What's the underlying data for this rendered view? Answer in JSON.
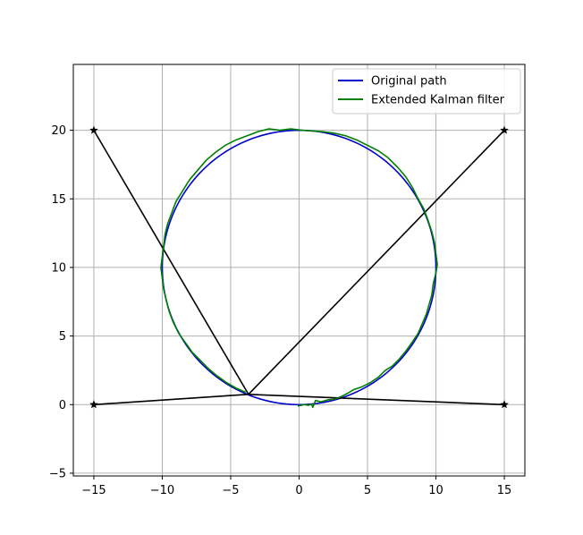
{
  "chart_data": {
    "type": "line",
    "xlim": [
      -16.5,
      16.5
    ],
    "ylim": [
      -5.2,
      24.8
    ],
    "xticks": [
      -15,
      -10,
      -5,
      0,
      5,
      10,
      15
    ],
    "yticks": [
      -5,
      0,
      5,
      10,
      15,
      20
    ],
    "grid": true,
    "legend_position": "top-right",
    "series": [
      {
        "name": "Original path",
        "kind": "circle",
        "center": [
          0,
          10
        ],
        "radius": 10,
        "color": "#0000cc"
      },
      {
        "name": "Extended Kalman filter",
        "color": "#008000",
        "points": [
          [
            -0.1,
            -0.1
          ],
          [
            0.4,
            0.0
          ],
          [
            0.7,
            -0.05
          ],
          [
            0.9,
            0.05
          ],
          [
            1.0,
            -0.2
          ],
          [
            1.2,
            0.3
          ],
          [
            1.6,
            0.2
          ],
          [
            2.1,
            0.35
          ],
          [
            2.6,
            0.4
          ],
          [
            3.1,
            0.6
          ],
          [
            3.5,
            0.8
          ],
          [
            4.0,
            1.1
          ],
          [
            4.6,
            1.3
          ],
          [
            5.2,
            1.6
          ],
          [
            5.8,
            2.0
          ],
          [
            6.3,
            2.5
          ],
          [
            6.8,
            2.8
          ],
          [
            7.3,
            3.3
          ],
          [
            7.8,
            3.9
          ],
          [
            8.3,
            4.6
          ],
          [
            8.7,
            5.2
          ],
          [
            9.0,
            5.9
          ],
          [
            9.3,
            6.6
          ],
          [
            9.5,
            7.3
          ],
          [
            9.7,
            8.0
          ],
          [
            9.8,
            8.8
          ],
          [
            10.0,
            9.6
          ],
          [
            10.1,
            10.2
          ],
          [
            10.0,
            11.0
          ],
          [
            9.9,
            11.8
          ],
          [
            9.7,
            12.6
          ],
          [
            9.4,
            13.5
          ],
          [
            9.1,
            14.3
          ],
          [
            8.7,
            15.0
          ],
          [
            8.3,
            15.8
          ],
          [
            7.8,
            16.6
          ],
          [
            7.2,
            17.3
          ],
          [
            6.5,
            18.0
          ],
          [
            5.8,
            18.5
          ],
          [
            5.0,
            18.9
          ],
          [
            4.2,
            19.3
          ],
          [
            3.4,
            19.6
          ],
          [
            2.5,
            19.8
          ],
          [
            1.7,
            19.9
          ],
          [
            0.9,
            19.95
          ],
          [
            0.2,
            20.0
          ],
          [
            -0.6,
            20.1
          ],
          [
            -1.4,
            20.0
          ],
          [
            -2.2,
            20.1
          ],
          [
            -3.0,
            19.9
          ],
          [
            -3.8,
            19.6
          ],
          [
            -4.6,
            19.3
          ],
          [
            -5.4,
            18.9
          ],
          [
            -6.1,
            18.4
          ],
          [
            -6.8,
            17.8
          ],
          [
            -7.4,
            17.1
          ],
          [
            -8.0,
            16.4
          ],
          [
            -8.5,
            15.6
          ],
          [
            -9.0,
            14.8
          ],
          [
            -9.3,
            14.0
          ],
          [
            -9.6,
            13.2
          ],
          [
            -9.8,
            12.4
          ],
          [
            -9.9,
            11.6
          ],
          [
            -10.0,
            10.8
          ],
          [
            -10.1,
            10.0
          ],
          [
            -10.0,
            9.2
          ],
          [
            -9.9,
            8.4
          ],
          [
            -9.7,
            7.6
          ],
          [
            -9.5,
            6.8
          ],
          [
            -9.2,
            6.0
          ],
          [
            -8.8,
            5.2
          ],
          [
            -8.3,
            4.5
          ],
          [
            -7.8,
            3.8
          ],
          [
            -7.2,
            3.2
          ],
          [
            -6.6,
            2.6
          ],
          [
            -6.0,
            2.1
          ],
          [
            -5.3,
            1.6
          ],
          [
            -4.6,
            1.2
          ],
          [
            -3.9,
            0.9
          ]
        ]
      }
    ],
    "anchors": [
      [
        -15,
        20
      ],
      [
        15,
        20
      ],
      [
        -15,
        0
      ],
      [
        15,
        0
      ]
    ],
    "estimated_position": [
      -3.7,
      0.75
    ]
  },
  "ui": {
    "colors": {
      "axis": "#000000",
      "grid": "#b0b0b0",
      "legend_border": "#cccccc",
      "ray": "#000000",
      "anchor": "#000000"
    }
  }
}
